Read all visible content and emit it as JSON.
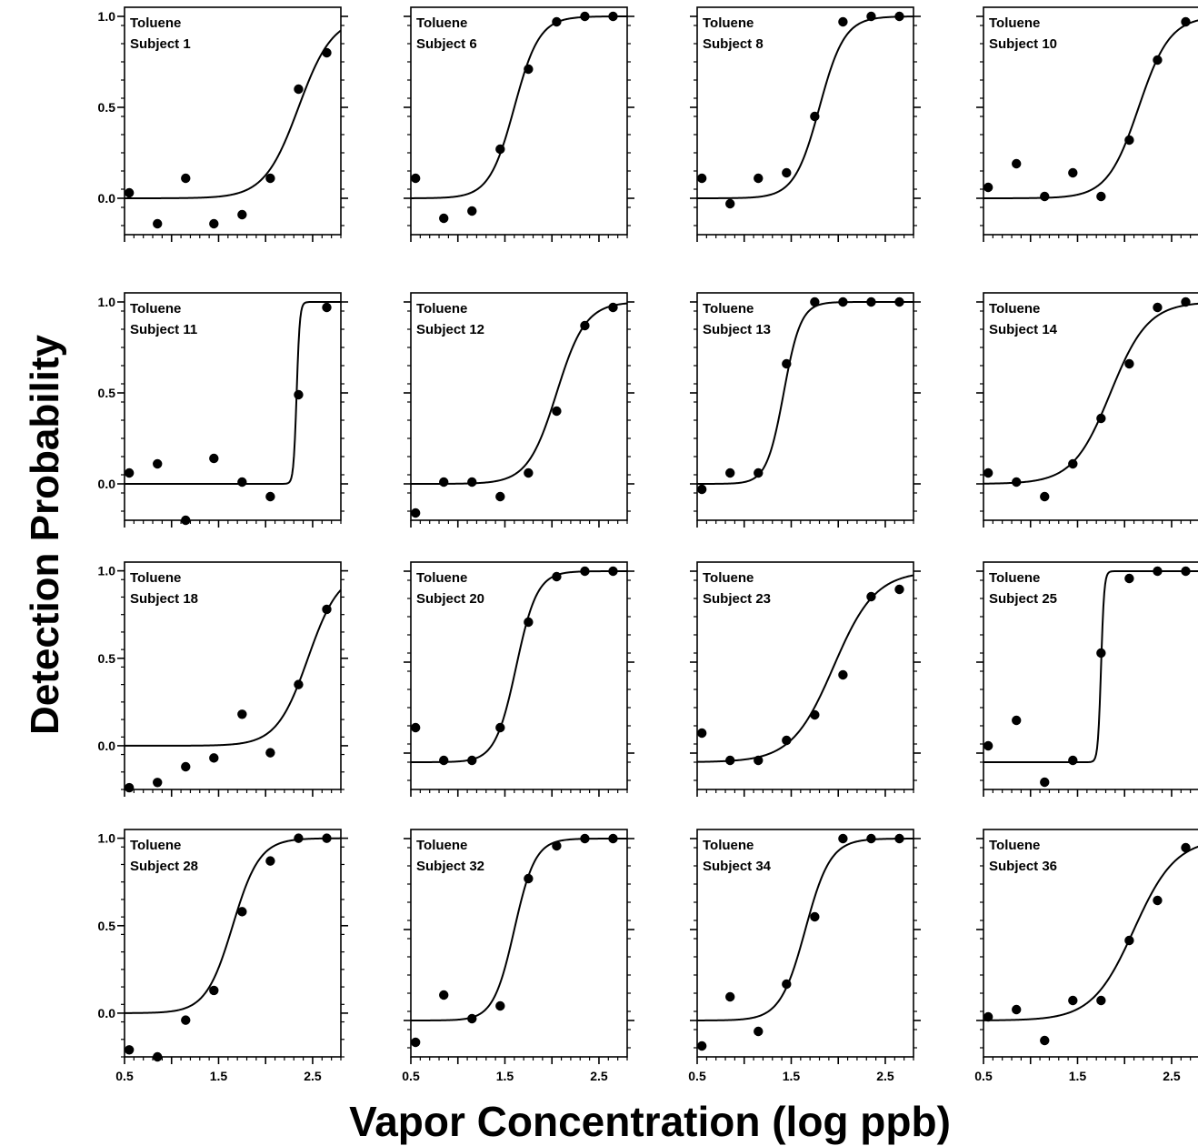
{
  "figure": {
    "ylabel": "Detection Probability",
    "xlabel": "Vapor Concentration (log ppb)"
  },
  "chart_data": [
    {
      "type": "scatter",
      "title": "Toluene",
      "subtitle": "Subject 1",
      "xlim": [
        0.5,
        2.8
      ],
      "ylim": [
        -0.2,
        1.05
      ],
      "yticks": [
        "0.0",
        "0.5",
        "1.0"
      ],
      "xticks": [],
      "x": [
        0.55,
        0.85,
        1.15,
        1.45,
        1.75,
        2.05,
        2.35,
        2.65
      ],
      "y": [
        0.03,
        -0.14,
        0.11,
        -0.14,
        -0.09,
        0.11,
        0.6,
        0.8
      ],
      "fit": {
        "threshold": 2.35,
        "slope": 5.5,
        "lower": 0.0
      }
    },
    {
      "type": "scatter",
      "title": "Toluene",
      "subtitle": "Subject 6",
      "xlim": [
        0.5,
        2.8
      ],
      "ylim": [
        -0.2,
        1.05
      ],
      "yticks": [],
      "xticks": [],
      "x": [
        0.55,
        0.85,
        1.15,
        1.45,
        1.75,
        2.05,
        2.35,
        2.65
      ],
      "y": [
        0.11,
        -0.11,
        -0.07,
        0.27,
        0.71,
        0.97,
        1.0,
        1.0
      ],
      "fit": {
        "threshold": 1.6,
        "slope": 7.5,
        "lower": 0.0
      }
    },
    {
      "type": "scatter",
      "title": "Toluene",
      "subtitle": "Subject 8",
      "xlim": [
        0.5,
        2.8
      ],
      "ylim": [
        -0.2,
        1.05
      ],
      "yticks": [],
      "xticks": [],
      "x": [
        0.55,
        0.85,
        1.15,
        1.45,
        1.75,
        2.05,
        2.35,
        2.65
      ],
      "y": [
        0.11,
        -0.03,
        0.11,
        0.14,
        0.45,
        0.97,
        1.0,
        1.0
      ],
      "fit": {
        "threshold": 1.8,
        "slope": 7.5,
        "lower": 0.0
      }
    },
    {
      "type": "scatter",
      "title": "Toluene",
      "subtitle": "Subject 10",
      "xlim": [
        0.5,
        2.8
      ],
      "ylim": [
        -0.2,
        1.05
      ],
      "yticks": [],
      "xticks": [],
      "x": [
        0.55,
        0.85,
        1.15,
        1.45,
        1.75,
        2.05,
        2.35,
        2.65
      ],
      "y": [
        0.06,
        0.19,
        0.01,
        0.14,
        0.01,
        0.32,
        0.76,
        0.97
      ],
      "fit": {
        "threshold": 2.15,
        "slope": 6.0,
        "lower": 0.0
      }
    },
    {
      "type": "scatter",
      "title": "Toluene",
      "subtitle": "Subject 11",
      "xlim": [
        0.5,
        2.8
      ],
      "ylim": [
        -0.2,
        1.05
      ],
      "yticks": [
        "0.0",
        "0.5",
        "1.0"
      ],
      "xticks": [],
      "x": [
        0.55,
        0.85,
        1.15,
        1.45,
        1.75,
        2.05,
        2.35,
        2.65
      ],
      "y": [
        0.06,
        0.11,
        -0.2,
        0.14,
        0.01,
        -0.07,
        0.49,
        0.97
      ],
      "fit": {
        "threshold": 2.33,
        "slope": 60,
        "lower": 0.0
      }
    },
    {
      "type": "scatter",
      "title": "Toluene",
      "subtitle": "Subject 12",
      "xlim": [
        0.5,
        2.8
      ],
      "ylim": [
        -0.2,
        1.05
      ],
      "yticks": [],
      "xticks": [],
      "x": [
        0.55,
        0.85,
        1.15,
        1.45,
        1.75,
        2.05,
        2.35,
        2.65
      ],
      "y": [
        -0.16,
        0.01,
        0.01,
        -0.07,
        0.06,
        0.4,
        0.87,
        0.97
      ],
      "fit": {
        "threshold": 2.05,
        "slope": 6.5,
        "lower": 0.0
      }
    },
    {
      "type": "scatter",
      "title": "Toluene",
      "subtitle": "Subject 13",
      "xlim": [
        0.5,
        2.8
      ],
      "ylim": [
        -0.2,
        1.05
      ],
      "yticks": [],
      "xticks": [],
      "x": [
        0.55,
        0.85,
        1.15,
        1.45,
        1.75,
        2.05,
        2.35,
        2.65
      ],
      "y": [
        -0.03,
        0.06,
        0.06,
        0.66,
        1.0,
        1.0,
        1.0,
        1.0
      ],
      "fit": {
        "threshold": 1.42,
        "slope": 11,
        "lower": 0.0
      }
    },
    {
      "type": "scatter",
      "title": "Toluene",
      "subtitle": "Subject 14",
      "xlim": [
        0.5,
        2.8
      ],
      "ylim": [
        -0.2,
        1.05
      ],
      "yticks": [],
      "xticks": [],
      "x": [
        0.55,
        0.85,
        1.15,
        1.45,
        1.75,
        2.05,
        2.35,
        2.65
      ],
      "y": [
        0.06,
        0.01,
        -0.07,
        0.11,
        0.36,
        0.66,
        0.97,
        1.0
      ],
      "fit": {
        "threshold": 1.85,
        "slope": 5.0,
        "lower": 0.0
      }
    },
    {
      "type": "scatter",
      "title": "Toluene",
      "subtitle": "Subject 18",
      "xlim": [
        0.5,
        2.8
      ],
      "ylim": [
        -0.25,
        1.05
      ],
      "yticks": [
        "0.0",
        "0.5",
        "1.0"
      ],
      "xticks": [],
      "x": [
        0.55,
        0.85,
        1.15,
        1.45,
        1.75,
        2.05,
        2.35,
        2.65
      ],
      "y": [
        -0.24,
        -0.21,
        -0.12,
        -0.07,
        0.18,
        -0.04,
        0.35,
        0.78
      ],
      "fit": {
        "threshold": 2.45,
        "slope": 6.0,
        "lower": 0.0
      }
    },
    {
      "type": "scatter",
      "title": "Toluene",
      "subtitle": "Subject 20",
      "xlim": [
        0.5,
        2.8
      ],
      "ylim": [
        -0.2,
        1.05
      ],
      "yticks": [],
      "xticks": [],
      "x": [
        0.55,
        0.85,
        1.15,
        1.45,
        1.75,
        2.05,
        2.35,
        2.65
      ],
      "y": [
        0.14,
        -0.04,
        -0.04,
        0.14,
        0.72,
        0.97,
        1.0,
        1.0
      ],
      "fit": {
        "threshold": 1.62,
        "slope": 9,
        "lower": -0.05
      }
    },
    {
      "type": "scatter",
      "title": "Toluene",
      "subtitle": "Subject 23",
      "xlim": [
        0.5,
        2.8
      ],
      "ylim": [
        -0.2,
        1.05
      ],
      "yticks": [],
      "xticks": [],
      "x": [
        0.55,
        0.85,
        1.15,
        1.45,
        1.75,
        2.05,
        2.35,
        2.65
      ],
      "y": [
        0.11,
        -0.04,
        -0.04,
        0.07,
        0.21,
        0.43,
        0.86,
        0.9
      ],
      "fit": {
        "threshold": 1.95,
        "slope": 4.5,
        "lower": -0.05
      }
    },
    {
      "type": "scatter",
      "title": "Toluene",
      "subtitle": "Subject 25",
      "xlim": [
        0.5,
        2.8
      ],
      "ylim": [
        -0.2,
        1.05
      ],
      "yticks": [],
      "xticks": [],
      "x": [
        0.55,
        0.85,
        1.15,
        1.45,
        1.75,
        2.05,
        2.35,
        2.65
      ],
      "y": [
        0.04,
        0.18,
        -0.16,
        -0.04,
        0.55,
        0.96,
        1.0,
        1.0
      ],
      "fit": {
        "threshold": 1.75,
        "slope": 60,
        "lower": -0.05
      }
    },
    {
      "type": "scatter",
      "title": "Toluene",
      "subtitle": "Subject 28",
      "xlim": [
        0.5,
        2.8
      ],
      "ylim": [
        -0.25,
        1.05
      ],
      "yticks": [
        "0.0",
        "0.5",
        "1.0"
      ],
      "xticks": [
        "0.5",
        "1.5",
        "2.5"
      ],
      "x": [
        0.55,
        0.85,
        1.15,
        1.45,
        1.75,
        2.05,
        2.35,
        2.65
      ],
      "y": [
        -0.21,
        -0.25,
        -0.04,
        0.13,
        0.58,
        0.87,
        1.0,
        1.0
      ],
      "fit": {
        "threshold": 1.65,
        "slope": 7,
        "lower": 0.0
      }
    },
    {
      "type": "scatter",
      "title": "Toluene",
      "subtitle": "Subject 32",
      "xlim": [
        0.5,
        2.8
      ],
      "ylim": [
        -0.2,
        1.05
      ],
      "yticks": [],
      "xticks": [
        "0.5",
        "1.5",
        "2.5"
      ],
      "x": [
        0.55,
        0.85,
        1.15,
        1.45,
        1.75,
        2.05,
        2.35,
        2.65
      ],
      "y": [
        -0.12,
        0.14,
        0.01,
        0.08,
        0.78,
        0.96,
        1.0,
        1.0
      ],
      "fit": {
        "threshold": 1.6,
        "slope": 9,
        "lower": 0.0
      }
    },
    {
      "type": "scatter",
      "title": "Toluene",
      "subtitle": "Subject 34",
      "xlim": [
        0.5,
        2.8
      ],
      "ylim": [
        -0.2,
        1.05
      ],
      "yticks": [],
      "xticks": [
        "0.5",
        "1.5",
        "2.5"
      ],
      "x": [
        0.55,
        0.85,
        1.15,
        1.45,
        1.75,
        2.05,
        2.35,
        2.65
      ],
      "y": [
        -0.14,
        0.13,
        -0.06,
        0.2,
        0.57,
        1.0,
        1.0,
        1.0
      ],
      "fit": {
        "threshold": 1.65,
        "slope": 7.5,
        "lower": 0.0
      }
    },
    {
      "type": "scatter",
      "title": "Toluene",
      "subtitle": "Subject 36",
      "xlim": [
        0.5,
        2.8
      ],
      "ylim": [
        -0.2,
        1.05
      ],
      "yticks": [],
      "xticks": [
        "0.5",
        "1.5",
        "2.5"
      ],
      "x": [
        0.55,
        0.85,
        1.15,
        1.45,
        1.75,
        2.05,
        2.35,
        2.65
      ],
      "y": [
        0.02,
        0.06,
        -0.11,
        0.11,
        0.11,
        0.44,
        0.66,
        0.95
      ],
      "fit": {
        "threshold": 2.1,
        "slope": 4.5,
        "lower": 0.0
      }
    }
  ]
}
